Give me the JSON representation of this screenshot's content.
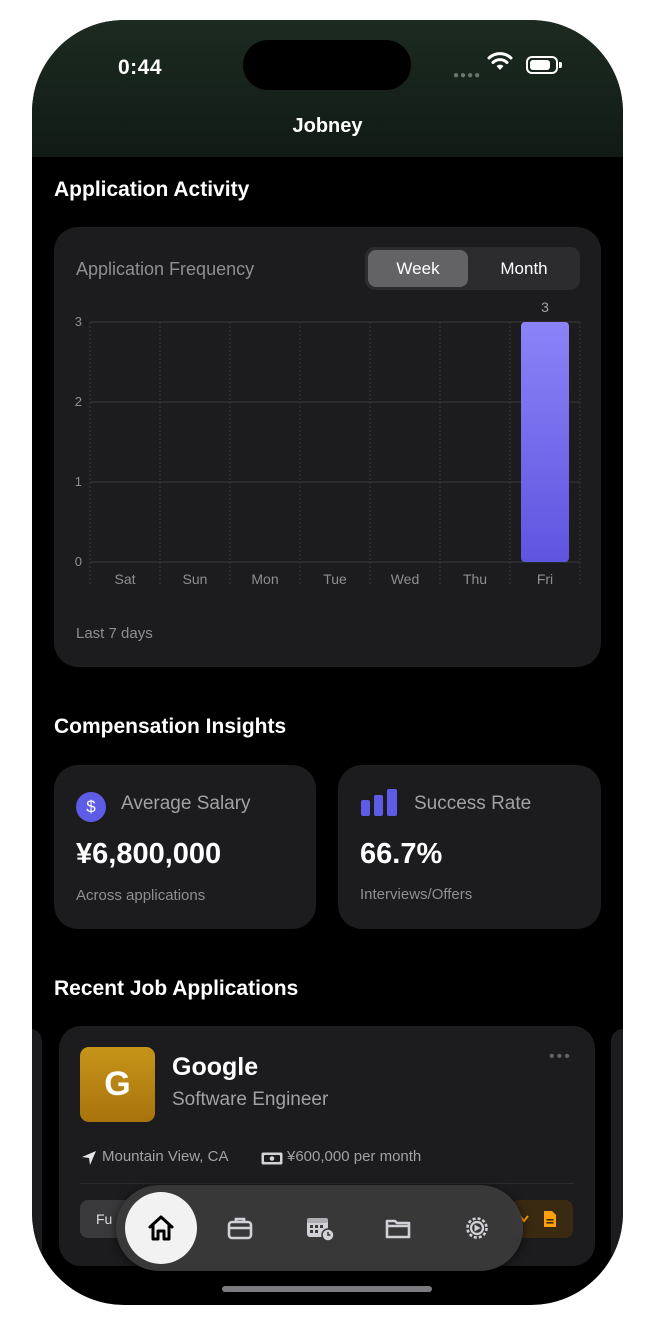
{
  "status_bar": {
    "time": "0:44"
  },
  "app": {
    "title": "Jobney"
  },
  "activity": {
    "section_title": "Application Activity",
    "card_title": "Application Frequency",
    "segments": {
      "week": "Week",
      "month": "Month",
      "selected": "Week"
    },
    "footnote": "Last 7 days",
    "chart_data": {
      "type": "bar",
      "categories": [
        "Sat",
        "Sun",
        "Mon",
        "Tue",
        "Wed",
        "Thu",
        "Fri"
      ],
      "values": [
        0,
        0,
        0,
        0,
        0,
        0,
        3
      ],
      "value_labels": [
        "",
        "",
        "",
        "",
        "",
        "",
        "3"
      ],
      "yticks": [
        "0",
        "1",
        "2",
        "3"
      ],
      "ylim": [
        0,
        3
      ],
      "grid": true,
      "bar_color_top": "#8b83f7",
      "bar_color_bottom": "#5e54e0"
    }
  },
  "compensation": {
    "section_title": "Compensation Insights",
    "average_salary": {
      "label": "Average Salary",
      "value": "¥6,800,000",
      "sub": "Across applications",
      "icon_glyph": "$"
    },
    "success_rate": {
      "label": "Success Rate",
      "value": "66.7%",
      "sub": "Interviews/Offers"
    }
  },
  "recent": {
    "section_title": "Recent Job Applications",
    "job": {
      "logo_letter": "G",
      "company": "Google",
      "role": "Software Engineer",
      "location": "Mountain View, CA",
      "salary": "¥600,000 per month",
      "chip": "Fu"
    }
  },
  "tabs": [
    "home-icon",
    "briefcase-icon",
    "calendar-icon",
    "folder-icon",
    "settings-icon"
  ],
  "colors": {
    "accent": "#5e5ce6",
    "logo": "#b98213",
    "orange": "#ff9f0a"
  }
}
